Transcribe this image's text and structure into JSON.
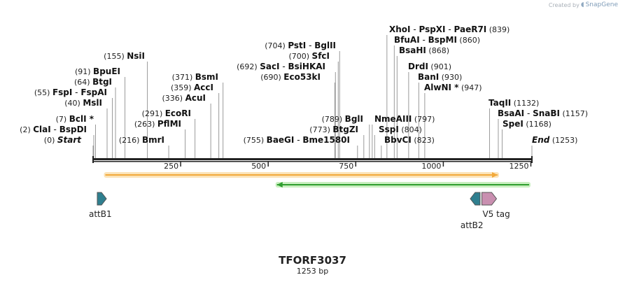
{
  "credit": {
    "text": "Created by",
    "brand": "SnapGene",
    "logo_icon": "snapgene-logo-icon"
  },
  "map": {
    "title": "TFORF3037",
    "length_label": "1253 bp",
    "sequence_length": 1253,
    "ticks": [
      {
        "value": 250,
        "label": "250"
      },
      {
        "value": 500,
        "label": "500"
      },
      {
        "value": 750,
        "label": "750"
      },
      {
        "value": 1000,
        "label": "1000"
      },
      {
        "value": 1250,
        "label": "1250"
      }
    ],
    "site_groups": [
      {
        "pos": 0,
        "gap": "",
        "pair": [
          {
            "text": "Start",
            "style": "italic"
          }
        ],
        "label_pos": "(0)"
      },
      {
        "pos": 2,
        "gap": "",
        "pair": [
          {
            "text": "ClaI",
            "style": "bold"
          },
          {
            "text": "BspDI",
            "style": "bold"
          }
        ],
        "label_pos": "(2)"
      },
      {
        "pos": 7,
        "gap": "",
        "pair": [
          {
            "text": "BclI *",
            "style": "bold"
          }
        ],
        "label_pos": "(7)"
      },
      {
        "pos": 40,
        "gap": "",
        "pair": [
          {
            "text": "MslI",
            "style": "bold"
          }
        ],
        "label_pos": "(40)"
      },
      {
        "pos": 55,
        "gap": "",
        "pair": [
          {
            "text": "FspI",
            "style": "bold"
          },
          {
            "text": "FspAI",
            "style": "bold"
          }
        ],
        "label_pos": "(55)"
      },
      {
        "pos": 64,
        "gap": "",
        "pair": [
          {
            "text": "BtgI",
            "style": "bold"
          }
        ],
        "label_pos": "(64)"
      },
      {
        "pos": 91,
        "gap": "",
        "pair": [
          {
            "text": "BpuEI",
            "style": "bold"
          }
        ],
        "label_pos": "(91)"
      },
      {
        "pos": 155,
        "gap": "",
        "pair": [
          {
            "text": "NsiI",
            "style": "bold"
          }
        ],
        "label_pos": "(155)"
      },
      {
        "pos": 216,
        "gap": "",
        "pair": [
          {
            "text": "BmrI",
            "style": "bold"
          }
        ],
        "label_pos": "(216)"
      },
      {
        "pos": 263,
        "gap": "",
        "pair": [
          {
            "text": "PflMI",
            "style": "bold"
          }
        ],
        "label_pos": "(263)"
      },
      {
        "pos": 291,
        "gap": "",
        "pair": [
          {
            "text": "EcoRI",
            "style": "bold"
          }
        ],
        "label_pos": "(291)"
      },
      {
        "pos": 336,
        "gap": "",
        "pair": [
          {
            "text": "AcuI",
            "style": "bold"
          }
        ],
        "label_pos": "(336)"
      },
      {
        "pos": 359,
        "gap": "",
        "pair": [
          {
            "text": "AccI",
            "style": "bold"
          }
        ],
        "label_pos": "(359)"
      },
      {
        "pos": 371,
        "gap": "",
        "pair": [
          {
            "text": "BsmI",
            "style": "bold"
          }
        ],
        "label_pos": "(371)"
      },
      {
        "pos": 690,
        "gap": "",
        "pair": [
          {
            "text": "Eco53kI",
            "style": "bold"
          }
        ],
        "label_pos": "(690)"
      },
      {
        "pos": 692,
        "gap": "",
        "pair": [
          {
            "text": "SacI",
            "style": "bold"
          },
          {
            "text": "BsiHKAI",
            "style": "bold"
          }
        ],
        "label_pos": "(692)"
      },
      {
        "pos": 700,
        "gap": "",
        "pair": [
          {
            "text": "SfcI",
            "style": "bold"
          }
        ],
        "label_pos": "(700)"
      },
      {
        "pos": 704,
        "gap": "",
        "pair": [
          {
            "text": "PstI",
            "style": "bold"
          },
          {
            "text": "BglII",
            "style": "bold"
          }
        ],
        "label_pos": "(704)"
      },
      {
        "pos": 755,
        "gap": "",
        "pair": [
          {
            "text": "BaeGI",
            "style": "bold"
          },
          {
            "text": "Bme1580I",
            "style": "bold"
          }
        ],
        "label_pos": "(755)"
      },
      {
        "pos": 773,
        "gap": "",
        "pair": [
          {
            "text": "BtgZI",
            "style": "bold"
          }
        ],
        "label_pos": "(773)"
      },
      {
        "pos": 789,
        "gap": "",
        "pair": [
          {
            "text": "BglI",
            "style": "bold"
          }
        ],
        "label_pos": "(789)"
      },
      {
        "pos": 797,
        "gap": "",
        "pair": [
          {
            "text": "NmeAIII",
            "style": "bold"
          }
        ],
        "label_pos": "(797)"
      },
      {
        "pos": 804,
        "gap": "",
        "pair": [
          {
            "text": "SspI",
            "style": "bold"
          }
        ],
        "label_pos": "(804)"
      },
      {
        "pos": 823,
        "gap": "",
        "pair": [
          {
            "text": "BbvCI",
            "style": "bold"
          }
        ],
        "label_pos": "(823)"
      },
      {
        "pos": 839,
        "gap": "",
        "pair": [
          {
            "text": "XhoI",
            "style": "bold"
          },
          {
            "text": "PspXI",
            "style": "bold"
          },
          {
            "text": "PaeR7I",
            "style": "bold"
          }
        ],
        "label_pos": "(839)"
      },
      {
        "pos": 860,
        "gap": "",
        "pair": [
          {
            "text": "BfuAI",
            "style": "bold"
          },
          {
            "text": "BspMI",
            "style": "bold"
          }
        ],
        "label_pos": "(860)"
      },
      {
        "pos": 868,
        "gap": "",
        "pair": [
          {
            "text": "BsaHI",
            "style": "bold"
          }
        ],
        "label_pos": "(868)"
      },
      {
        "pos": 901,
        "gap": "",
        "pair": [
          {
            "text": "DrdI",
            "style": "bold"
          }
        ],
        "label_pos": "(901)"
      },
      {
        "pos": 930,
        "gap": "",
        "pair": [
          {
            "text": "BanI",
            "style": "bold"
          }
        ],
        "label_pos": "(930)"
      },
      {
        "pos": 947,
        "gap": "",
        "pair": [
          {
            "text": "AlwNI *",
            "style": "bold"
          }
        ],
        "label_pos": "(947)"
      },
      {
        "pos": 1132,
        "gap": "",
        "pair": [
          {
            "text": "TaqII",
            "style": "bold"
          }
        ],
        "label_pos": "(1132)"
      },
      {
        "pos": 1157,
        "gap": "",
        "pair": [
          {
            "text": "BsaAI",
            "style": "bold"
          },
          {
            "text": "SnaBI",
            "style": "bold"
          }
        ],
        "label_pos": "(1157)"
      },
      {
        "pos": 1168,
        "gap": "",
        "pair": [
          {
            "text": "SpeI",
            "style": "bold"
          }
        ],
        "label_pos": "(1168)"
      },
      {
        "pos": 1253,
        "gap": "",
        "pair": [
          {
            "text": "End",
            "style": "italic"
          }
        ],
        "label_pos": "(1253)"
      }
    ],
    "features": [
      {
        "name": "orange-feature-arrow",
        "start": 35,
        "end": 1155,
        "direction": "forward",
        "color": "#f2a93b",
        "halo": "#fbe3b8"
      },
      {
        "name": "green-feature-arrow",
        "start": 525,
        "end": 1245,
        "direction": "reverse",
        "color": "#2f9e2f",
        "halo": "#c9efc0"
      },
      {
        "name": "attB1",
        "label": "attB1",
        "start": 12,
        "end": 38,
        "direction": "forward",
        "color": "#2f7f8f"
      },
      {
        "name": "attB2",
        "label": "attB2",
        "start": 1077,
        "end": 1105,
        "direction": "reverse",
        "color": "#2f7f8f"
      },
      {
        "name": "V5 tag",
        "label": "V5 tag",
        "start": 1110,
        "end": 1152,
        "direction": "forward",
        "color": "#c98fb0"
      }
    ]
  }
}
